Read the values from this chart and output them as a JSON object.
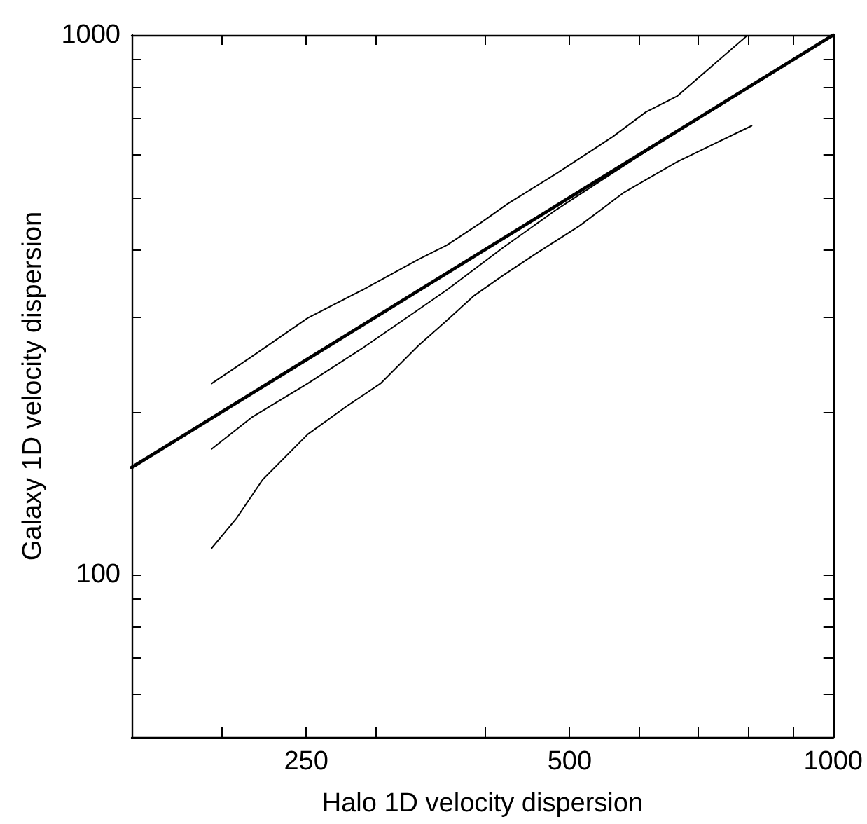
{
  "chart_data": {
    "type": "line",
    "xlabel": "Halo 1D velocity dispersion",
    "ylabel": "Galaxy 1D velocity dispersion",
    "log": "xy",
    "grid": false,
    "marker": "none",
    "line_style": "solid",
    "xlim": [
      158,
      1000
    ],
    "xticks": [
      {
        "value": 200,
        "label": null
      },
      250,
      {
        "value": 300,
        "label": null
      },
      {
        "value": 400,
        "label": null
      },
      500,
      {
        "value": 600,
        "label": null
      },
      {
        "value": 700,
        "label": null
      },
      {
        "value": 800,
        "label": null
      },
      {
        "value": 900,
        "label": null
      },
      1000
    ],
    "ylim": [
      50,
      1000
    ],
    "yticks": [
      {
        "value": 60,
        "label": null
      },
      {
        "value": 70,
        "label": null
      },
      {
        "value": 80,
        "label": null
      },
      {
        "value": 90,
        "label": null
      },
      100,
      {
        "value": 200,
        "label": null
      },
      {
        "value": 300,
        "label": null
      },
      {
        "value": 400,
        "label": null
      },
      {
        "value": 500,
        "label": null
      },
      {
        "value": 600,
        "label": null
      },
      {
        "value": 700,
        "label": null
      },
      {
        "value": 800,
        "label": null
      },
      {
        "value": 900,
        "label": null
      },
      1000
    ],
    "series": [
      {
        "color": "#000000",
        "x": [
          158,
          1000
        ],
        "values": [
          158,
          1000
        ]
      },
      {
        "color": "#000000",
        "x": [
          195,
          217,
          251,
          290,
          336,
          362,
          395,
          425,
          484,
          560,
          611,
          663,
          795
        ],
        "values": [
          226,
          254,
          299,
          337,
          384,
          408,
          448,
          487,
          555,
          648,
          720,
          770,
          993
        ]
      },
      {
        "color": "#000000",
        "x": [
          195,
          217,
          251,
          290,
          336,
          362,
          419,
          484,
          560,
          663,
          795
        ],
        "values": [
          171,
          196,
          226,
          263,
          310,
          337,
          403,
          476,
          555,
          663,
          792
        ]
      },
      {
        "color": "#000000",
        "x": [
          195,
          208,
          223,
          251,
          278,
          304,
          336,
          362,
          389,
          419,
          457,
          513,
          577,
          663,
          807
        ],
        "values": [
          112,
          127,
          150,
          182,
          205,
          226,
          266,
          296,
          329,
          358,
          393,
          443,
          511,
          582,
          679
        ]
      }
    ]
  }
}
